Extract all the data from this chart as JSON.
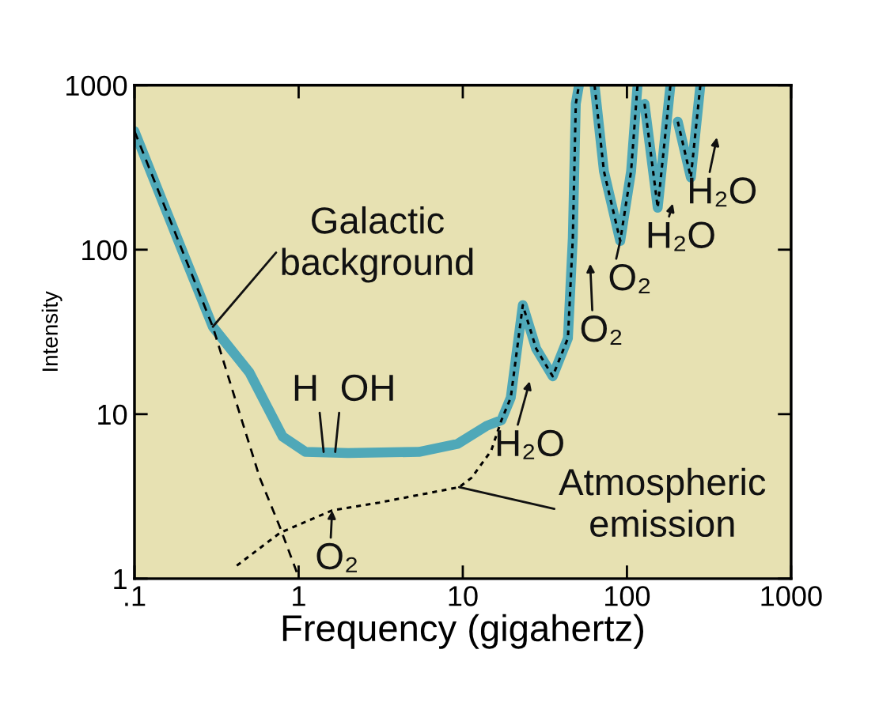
{
  "chart_data": {
    "type": "line",
    "xlabel": "Frequency (gigahertz)",
    "ylabel": "Intensity",
    "log": "xy",
    "xlim": [
      0.1,
      1000
    ],
    "ylim": [
      1,
      1000
    ],
    "xticks": [
      {
        "value": 0.1,
        "label": ".1"
      },
      1,
      10,
      100,
      1000
    ],
    "yticks": [
      1,
      10,
      100,
      1000
    ],
    "series": [
      {
        "color": "#4fa8b8",
        "line_style": "solid",
        "x": [
          0.1,
          0.2,
          0.3,
          0.5,
          0.8,
          1.1,
          2,
          5.4,
          9.3,
          14,
          17.2,
          19.6,
          23.2,
          28,
          35.3,
          43.7,
          46.8,
          48.8,
          51,
          55,
          63.5,
          72.4,
          91,
          106,
          116,
          118,
          128,
          154,
          184,
          190,
          204,
          245,
          280
        ],
        "values": [
          525,
          93,
          34,
          18,
          7.3,
          5.9,
          5.8,
          5.9,
          6.6,
          8.5,
          9.2,
          12.6,
          46,
          25,
          17,
          29,
          118,
          770,
          1000,
          null,
          1000,
          300,
          113,
          300,
          1000,
          null,
          770,
          180,
          1000,
          null,
          600,
          275,
          1000
        ]
      },
      {
        "color": "#000000",
        "line_style": "dashed",
        "x": [
          0.1,
          0.3,
          0.42,
          0.58,
          0.77,
          1.0
        ],
        "values": [
          525,
          34,
          11.5,
          4.1,
          2.05,
          1.02
        ]
      },
      {
        "color": "#000000",
        "line_style": "dotted",
        "x": [
          0.42,
          0.77,
          1.6,
          3.1,
          9.5,
          11.3,
          14.9,
          17.2,
          19.6,
          23.2,
          28,
          35.3,
          43.7,
          46.8,
          48.8,
          51,
          55,
          63.5,
          72.4,
          91,
          106,
          116,
          118,
          128,
          154,
          184,
          190,
          204,
          245,
          280
        ],
        "values": [
          1.2,
          1.9,
          2.6,
          2.9,
          3.6,
          4.1,
          6,
          9.2,
          12.6,
          46,
          25,
          17,
          29,
          118,
          770,
          1000,
          null,
          1000,
          300,
          113,
          300,
          1000,
          null,
          770,
          180,
          1000,
          null,
          600,
          275,
          1000
        ]
      }
    ],
    "annotations": [
      {
        "text": "Galactic\nbackground",
        "x": 0.3,
        "y": 34
      },
      {
        "text": "H",
        "x": 1.42,
        "y": 5.9
      },
      {
        "text": "OH",
        "x": 1.67,
        "y": 5.9
      },
      {
        "text": "O₂",
        "x": 1.6,
        "y": 2.6
      },
      "H₂O",
      "O₂",
      {
        "text": "O₂",
        "x": 91,
        "y": 113
      },
      "H₂O",
      "H₂O",
      {
        "text": "Atmospheric\nemission",
        "x": 9.5,
        "y": 3.6
      }
    ]
  }
}
